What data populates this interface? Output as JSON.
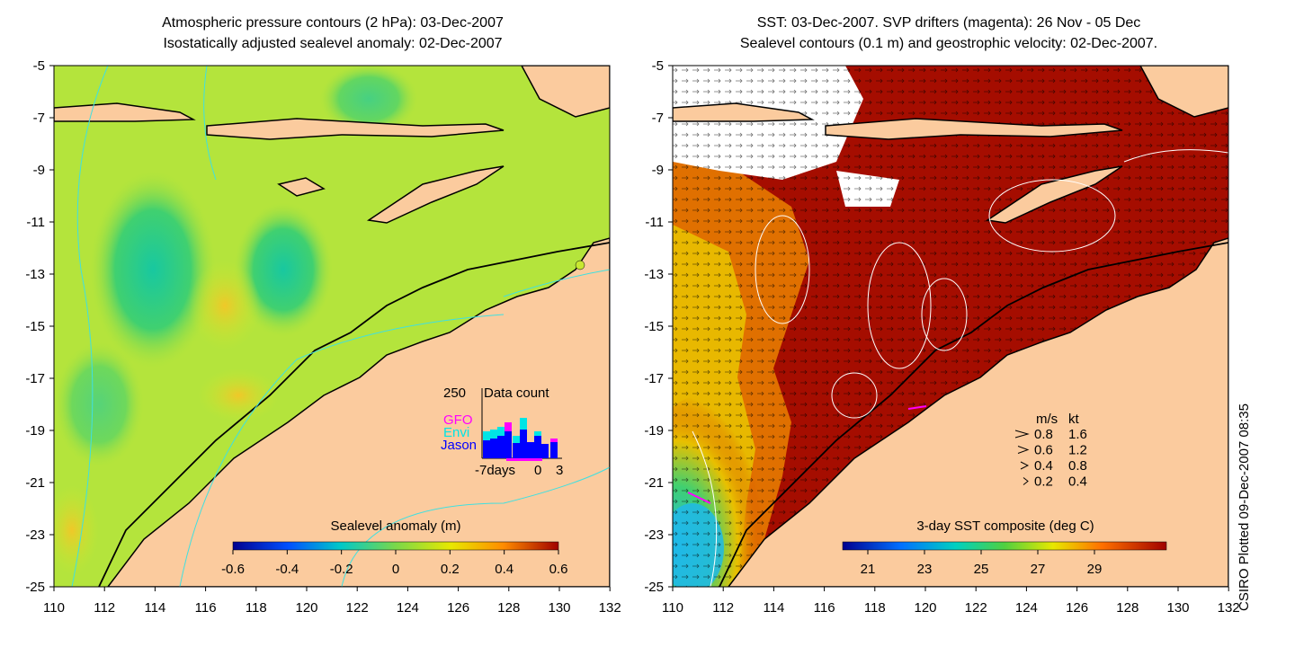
{
  "left_panel": {
    "title_line1": "Atmospheric pressure contours (2 hPa): 03-Dec-2007",
    "title_line2": "Isostatically adjusted sealevel anomaly: 02-Dec-2007",
    "colorbar_label": "Sealevel anomaly (m)",
    "colorbar_ticks": [
      "-0.6",
      "-0.4",
      "-0.2",
      "0",
      "0.2",
      "0.4",
      "0.6"
    ],
    "inset": {
      "title": "Data count",
      "ymax_label": "250",
      "x_labels": [
        "-7days",
        "0",
        "3"
      ],
      "legend": [
        {
          "name": "GFO",
          "color": "#ff00ff"
        },
        {
          "name": "Envi",
          "color": "#00e5e5"
        },
        {
          "name": "Jason",
          "color": "#0000ff"
        }
      ]
    }
  },
  "right_panel": {
    "title_line1": "SST: 03-Dec-2007. SVP drifters (magenta): 26 Nov - 05 Dec",
    "title_line2": "Sealevel contours (0.1 m) and geostrophic velocity: 02-Dec-2007.",
    "colorbar_label": "3-day SST composite (deg C)",
    "colorbar_ticks": [
      "21",
      "23",
      "25",
      "27",
      "29"
    ],
    "velocity_legend": {
      "headers": [
        "m/s",
        "kt"
      ],
      "rows": [
        [
          "0.8",
          "1.6"
        ],
        [
          "0.6",
          "1.2"
        ],
        [
          "0.4",
          "0.8"
        ],
        [
          "0.2",
          "0.4"
        ]
      ]
    }
  },
  "axes": {
    "y_ticks": [
      "-5",
      "-7",
      "-9",
      "-11",
      "-13",
      "-15",
      "-17",
      "-19",
      "-21",
      "-23",
      "-25"
    ],
    "x_ticks": [
      "110",
      "112",
      "114",
      "116",
      "118",
      "120",
      "122",
      "124",
      "126",
      "128",
      "130",
      "132"
    ]
  },
  "credit": "CSIRO Plotted 09-Dec-2007 08:35",
  "colors": {
    "land": "#fbcb9e",
    "ocean_green": "#a7e23c",
    "sst_hot": "#a50d00",
    "contour_cyan": "#40e0e0"
  }
}
